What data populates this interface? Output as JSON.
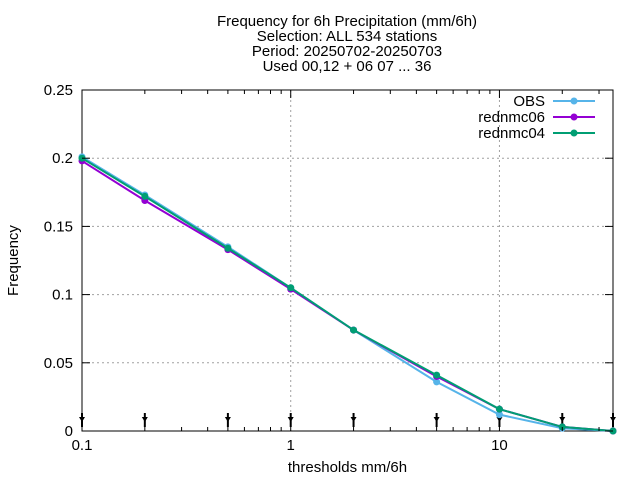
{
  "chart_data": {
    "type": "line",
    "title_lines": [
      "Frequency  for 6h Precipitation (mm/6h)",
      "Selection: ALL    534 stations",
      "Period: 20250702-20250703",
      "Used 00,12 + 06 07 ... 36"
    ],
    "xlabel": "thresholds mm/6h",
    "ylabel": "Frequency",
    "x_scale": "log",
    "xlim": [
      0.1,
      35
    ],
    "ylim": [
      0,
      0.25
    ],
    "x_ticks": [
      0.1,
      1,
      10
    ],
    "x_tick_labels": [
      "0.1",
      "1",
      "10"
    ],
    "y_ticks": [
      0,
      0.05,
      0.1,
      0.15,
      0.2,
      0.25
    ],
    "y_tick_labels": [
      "0",
      "0.05",
      "0.1",
      "0.15",
      "0.2",
      "0.25"
    ],
    "grid": true,
    "legend_position": "top-right",
    "x": [
      0.1,
      0.2,
      0.5,
      1,
      2,
      5,
      10,
      20,
      35
    ],
    "series": [
      {
        "name": "OBS",
        "color": "#56b4e9",
        "values": [
          0.201,
          0.173,
          0.135,
          0.105,
          0.074,
          0.036,
          0.012,
          0.002,
          0.0
        ]
      },
      {
        "name": "rednmc06",
        "color": "#9400d3",
        "values": [
          0.198,
          0.169,
          0.133,
          0.104,
          0.074,
          0.04,
          0.016,
          0.003,
          0.0
        ]
      },
      {
        "name": "rednmc04",
        "color": "#009e73",
        "values": [
          0.2,
          0.172,
          0.134,
          0.105,
          0.074,
          0.041,
          0.016,
          0.003,
          0.0
        ]
      }
    ]
  }
}
